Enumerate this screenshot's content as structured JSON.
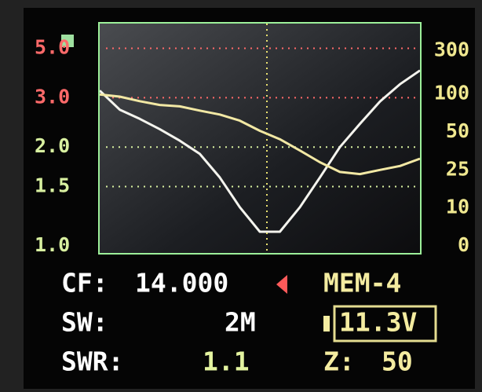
{
  "chart_data": {
    "type": "line",
    "series": [
      {
        "name": "SWR",
        "color": "#f4f4ee",
        "axis": "y",
        "values": [
          3.2,
          2.7,
          2.5,
          2.3,
          2.1,
          1.9,
          1.6,
          1.3,
          1.1,
          1.1,
          1.3,
          1.6,
          2.0,
          2.4,
          2.9,
          3.4,
          3.9
        ]
      },
      {
        "name": "Z",
        "color": "#f2e8a4",
        "axis": "y2",
        "values": [
          99,
          95,
          87,
          81,
          79,
          73,
          68,
          61,
          51,
          44,
          36,
          29,
          24,
          23,
          25,
          27,
          31
        ]
      }
    ],
    "yscale": "swr",
    "ylim": [
      1.0,
      7.0
    ],
    "yticks": [
      {
        "value": 1.0,
        "label": "1.0"
      },
      1.5,
      {
        "value": 2.0,
        "label": "2.0"
      },
      {
        "value": 3.0,
        "label": "3.0"
      },
      {
        "value": 5.0,
        "label": "5.0"
      }
    ],
    "ytick_colors": [
      "#d8f0a0",
      "#d8f0a0",
      "#d8f0a0",
      "#ff6a6a",
      "#ff6a6a"
    ],
    "y2scale": "impedance",
    "y2lim": [
      0,
      2000
    ],
    "y2ticks": [
      0,
      10,
      25,
      50,
      100,
      300
    ],
    "y2tick_color": "#f0e890",
    "grid": true
  },
  "readout": {
    "cf_label": "CF:",
    "cf_value": "14.000",
    "mem": "MEM-4",
    "sw_label": "SW:",
    "sw_value": "2M",
    "battery": "11.3V",
    "swr_label": "SWR:",
    "swr_value": "1.1",
    "z_label": "Z:",
    "z_value": "50"
  }
}
